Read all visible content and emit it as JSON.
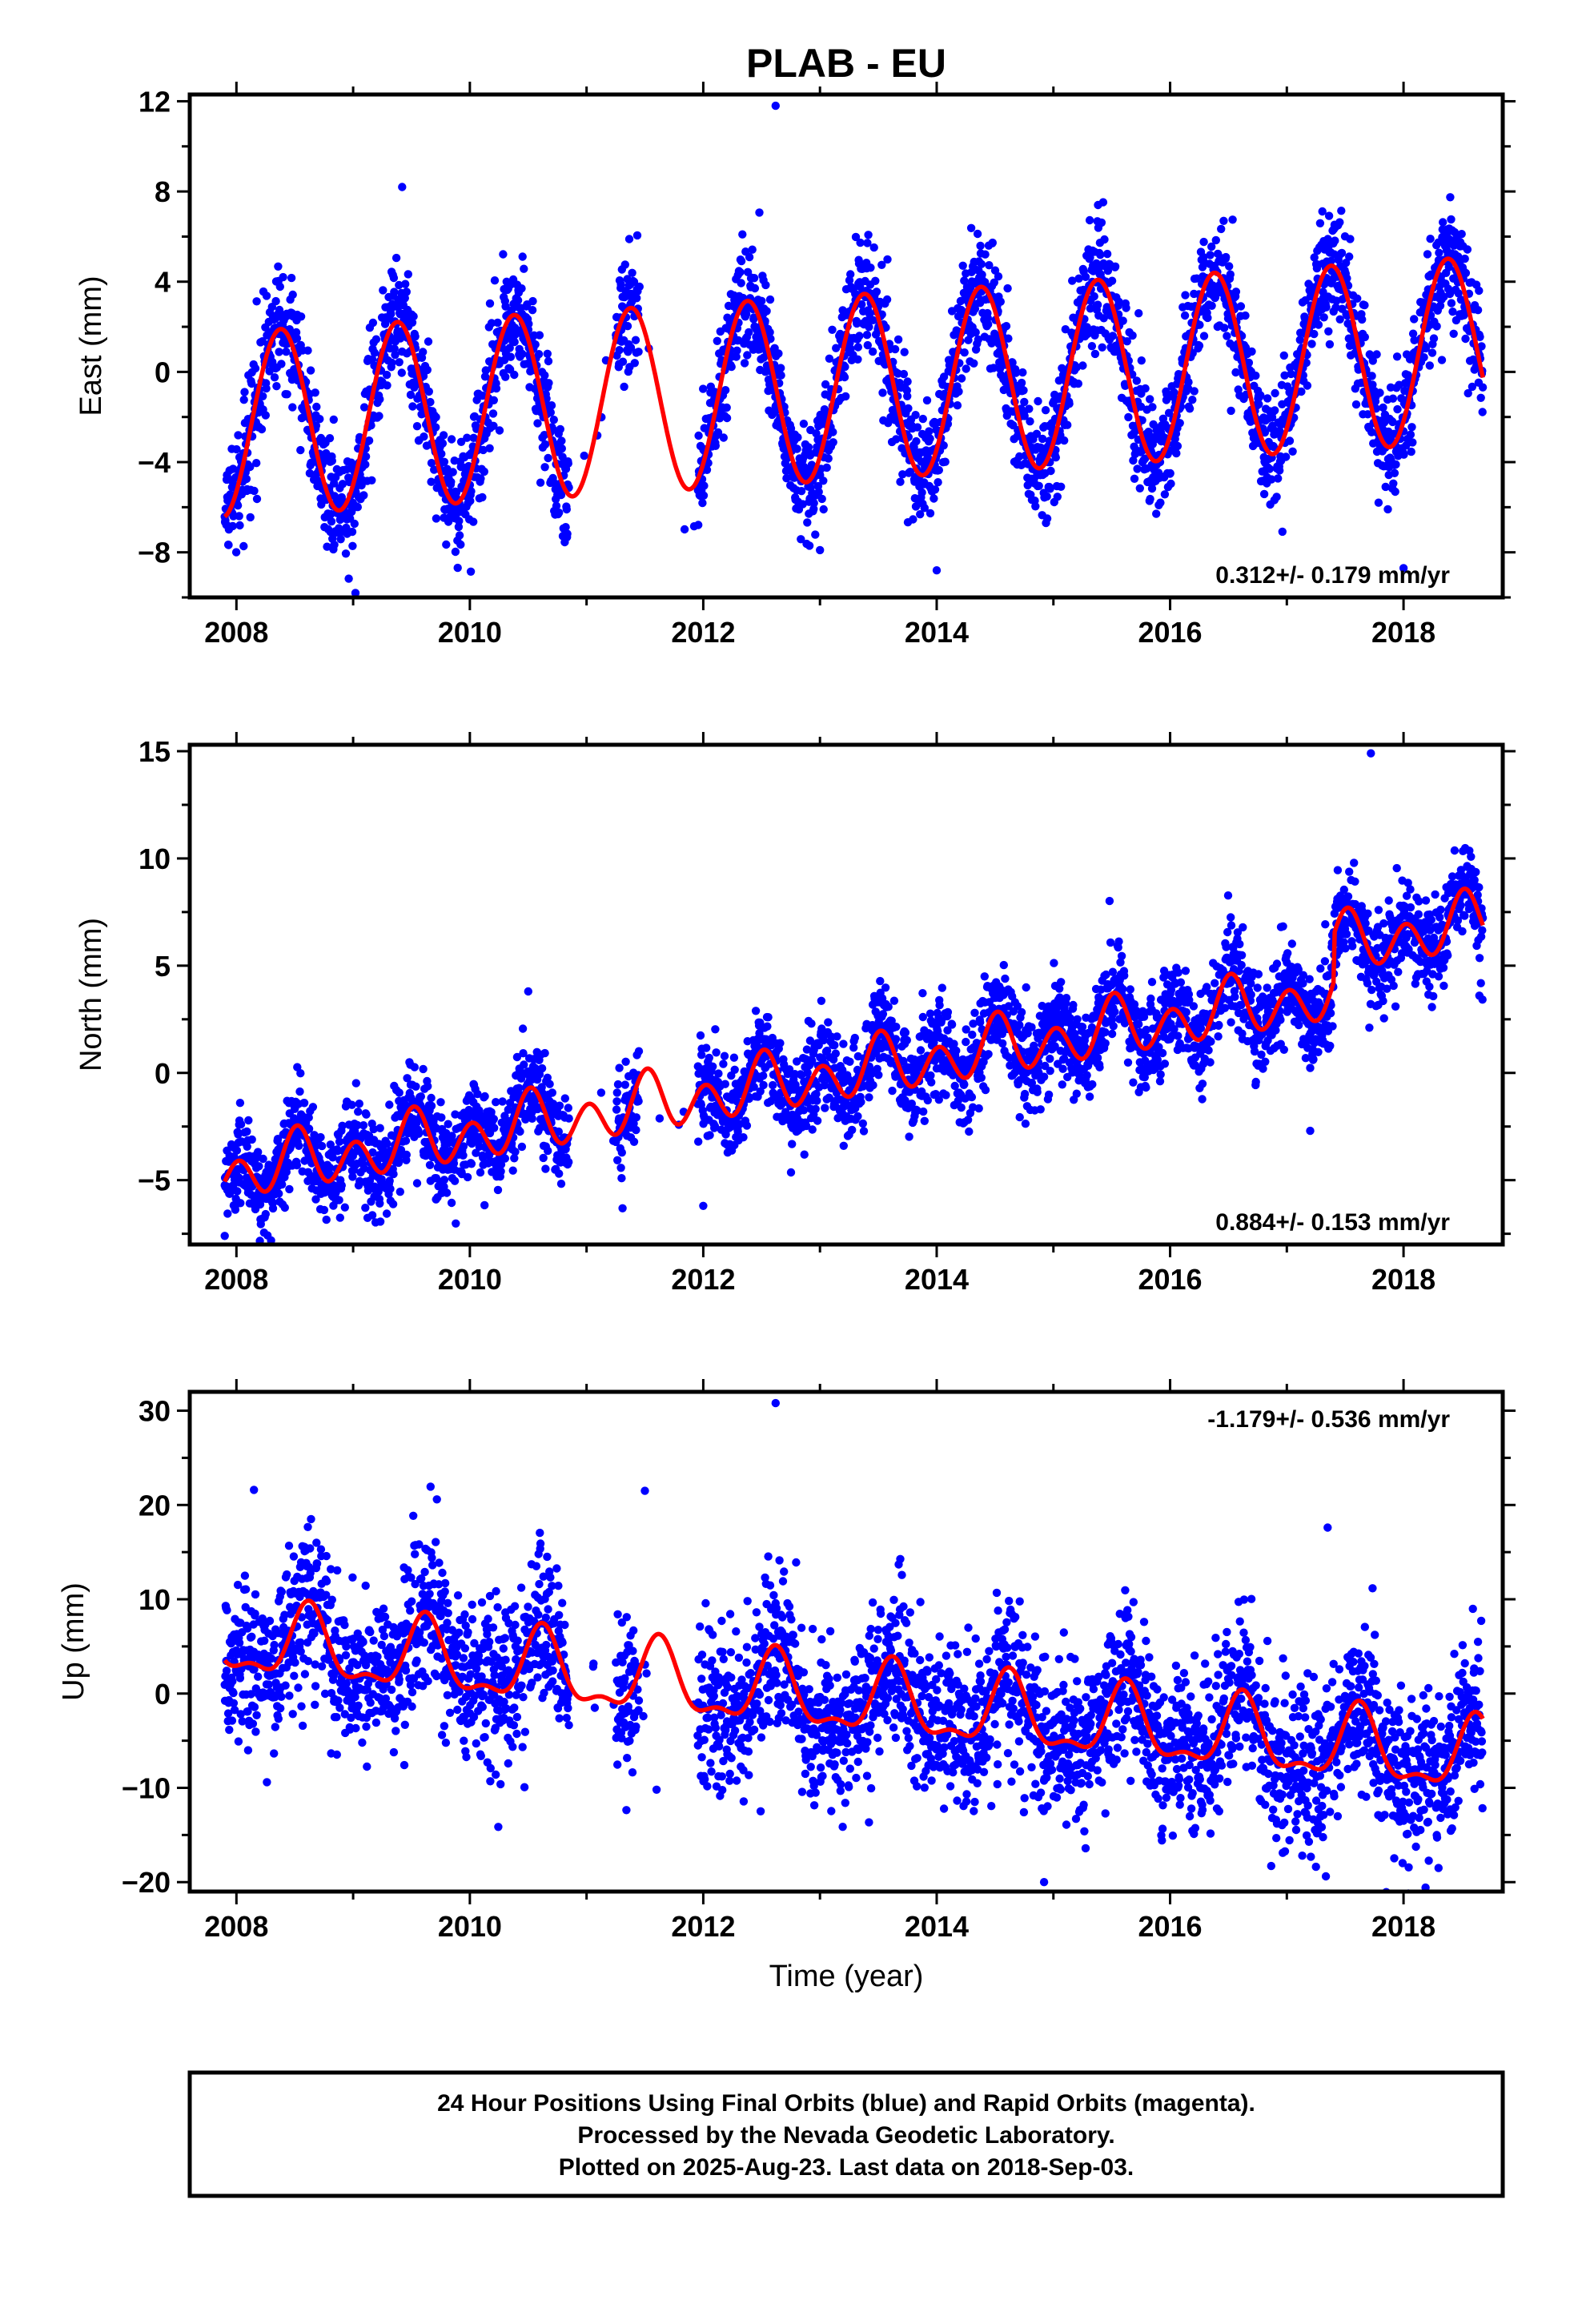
{
  "title": "PLAB - EU",
  "xlabel": "Time (year)",
  "caption": [
    "24 Hour Positions Using Final Orbits (blue) and Rapid Orbits (magenta).",
    "Processed by the Nevada Geodetic Laboratory.",
    "Plotted on 2025-Aug-23. Last data on 2018-Sep-03."
  ],
  "colors": {
    "points": "#0000ff",
    "model": "#ff0000",
    "frame": "#000000"
  },
  "chart_data": [
    {
      "type": "scatter",
      "panel": "East",
      "ylabel": "East (mm)",
      "rate_label": "0.312+/- 0.179 mm/yr",
      "rate_position": "bottom-right",
      "xlim": [
        2007.6,
        2018.85
      ],
      "ylim": [
        -10,
        12.3
      ],
      "xticks": [
        "2008",
        "2010",
        "2012",
        "2014",
        "2016",
        "2018"
      ],
      "yticks": [
        "12",
        "8",
        "4",
        "0",
        "-4",
        "-8"
      ],
      "data_range": [
        2007.9,
        2018.68
      ],
      "model": {
        "name": "model fit",
        "x_start": 2007.9,
        "x_end": 2018.68,
        "offset": -2.35,
        "rate": 0.312,
        "annual_amp": 4.1,
        "annual_phase_year": 2008.38,
        "semiannual_amp": 0.0,
        "semiannual_phase_year": 2008.0,
        "offsets": []
      },
      "noise_sd": 1.3,
      "gaps": [
        [
          2010.85,
          2011.25
        ],
        [
          2011.45,
          2011.95
        ]
      ],
      "outliers": [
        [
          2012.62,
          11.8
        ],
        [
          2009.42,
          8.2
        ],
        [
          2008.4,
          4.2
        ],
        [
          2018.0,
          -8.7
        ],
        [
          2009.02,
          -9.8
        ],
        [
          2013.0,
          -7.9
        ],
        [
          2014.0,
          -8.8
        ]
      ]
    },
    {
      "type": "scatter",
      "panel": "North",
      "ylabel": "North (mm)",
      "rate_label": "0.884+/- 0.153 mm/yr",
      "rate_position": "bottom-right",
      "xlim": [
        2007.6,
        2018.85
      ],
      "ylim": [
        -8,
        15.3
      ],
      "xticks": [
        "2008",
        "2010",
        "2012",
        "2014",
        "2016",
        "2018"
      ],
      "yticks": [
        "15",
        "10",
        "5",
        "0",
        "-5"
      ],
      "data_range": [
        2007.9,
        2018.68
      ],
      "model": {
        "name": "model fit",
        "x_start": 2007.9,
        "x_end": 2018.68,
        "offset": -4.7,
        "rate": 0.884,
        "annual_amp": 0.6,
        "annual_phase_year": 2008.52,
        "semiannual_amp": 1.1,
        "semiannual_phase_year": 2008.52,
        "offsets": [
          [
            2017.4,
            2.2
          ]
        ]
      },
      "noise_sd": 1.1,
      "gaps": [
        [
          2010.85,
          2011.25
        ],
        [
          2011.45,
          2011.95
        ]
      ],
      "outliers": [
        [
          2017.72,
          14.9
        ],
        [
          2016.95,
          6.8
        ],
        [
          2018.65,
          3.6
        ],
        [
          2017.2,
          -2.7
        ],
        [
          2012.0,
          -6.2
        ],
        [
          2010.5,
          3.8
        ],
        [
          2007.9,
          -7.6
        ]
      ]
    },
    {
      "type": "scatter",
      "panel": "Up",
      "ylabel": "Up (mm)",
      "rate_label": "-1.179+/- 0.536 mm/yr",
      "rate_position": "top-right",
      "xlim": [
        2007.6,
        2018.85
      ],
      "ylim": [
        -21,
        32
      ],
      "xticks": [
        "2008",
        "2010",
        "2012",
        "2014",
        "2016",
        "2018"
      ],
      "yticks": [
        "30",
        "20",
        "10",
        "0",
        "-10",
        "-20"
      ],
      "data_range": [
        2007.9,
        2018.68
      ],
      "model": {
        "name": "model fit",
        "x_start": 2007.9,
        "x_end": 2018.68,
        "offset": 5.6,
        "rate": -1.179,
        "annual_amp": 3.6,
        "annual_phase_year": 2008.62,
        "semiannual_amp": 1.5,
        "semiannual_phase_year": 2008.62,
        "offsets": []
      },
      "noise_sd": 4.2,
      "gaps": [
        [
          2010.85,
          2011.25
        ],
        [
          2011.45,
          2011.95
        ]
      ],
      "outliers": [
        [
          2012.62,
          30.8
        ],
        [
          2008.15,
          21.6
        ],
        [
          2011.5,
          21.5
        ],
        [
          2017.35,
          17.6
        ],
        [
          2014.92,
          -20.0
        ],
        [
          2018.3,
          -18.5
        ],
        [
          2011.6,
          -10.2
        ]
      ]
    }
  ]
}
